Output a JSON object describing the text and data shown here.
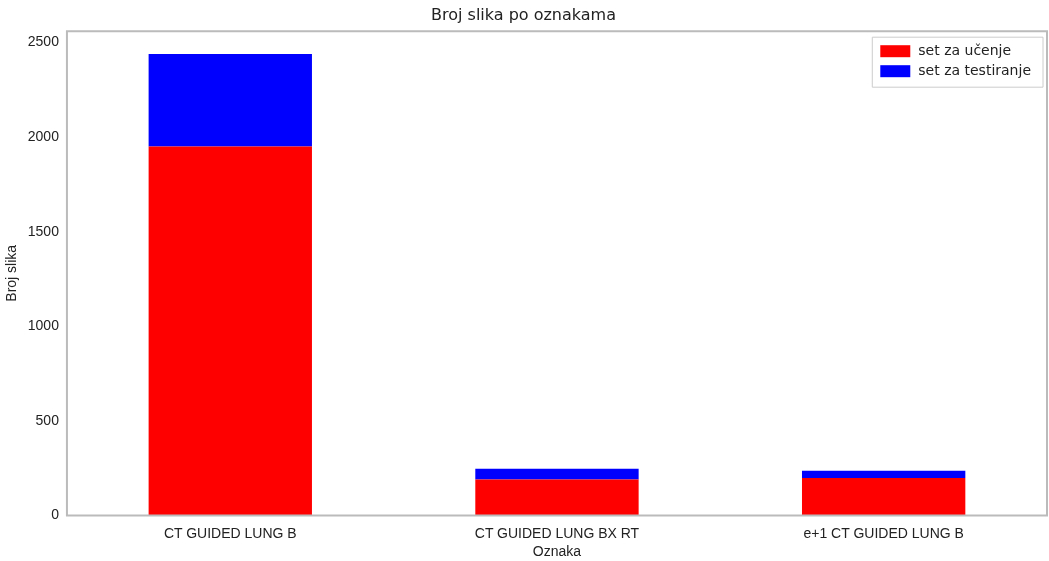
{
  "chart_data": {
    "type": "bar",
    "title": "Broj slika po oznakama",
    "xlabel": "Oznaka",
    "ylabel": "Broj slika",
    "categories": [
      "CT GUIDED LUNG B",
      "CT GUIDED LUNG BX RT",
      "e+1 CT GUIDED LUNG B"
    ],
    "stacked": true,
    "series": [
      {
        "name": "set za učenje",
        "color": "#ff0000",
        "values": [
          1950,
          190,
          198
        ]
      },
      {
        "name": "set za testiranje",
        "color": "#0000ff",
        "values": [
          490,
          56,
          38
        ]
      }
    ],
    "ylim": [
      0,
      2560
    ],
    "yticks": [
      0,
      500,
      1000,
      1500,
      2000,
      2500
    ],
    "grid": false,
    "legend": "top right"
  }
}
